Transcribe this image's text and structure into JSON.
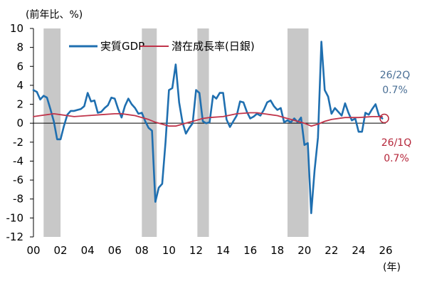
{
  "chart_data": {
    "type": "line",
    "ylabel": "(前年比、%)",
    "xunit": "(年)",
    "xlim": [
      2000.0,
      2026.0
    ],
    "ylim": [
      -12,
      10
    ],
    "yticks": [
      -12,
      -10,
      -8,
      -6,
      -4,
      -2,
      0,
      2,
      4,
      6,
      8,
      10
    ],
    "xticks": [
      2000,
      2002,
      2004,
      2006,
      2008,
      2010,
      2012,
      2014,
      2016,
      2018,
      2020,
      2022,
      2024,
      2026
    ],
    "xtick_labels": [
      "00",
      "02",
      "04",
      "06",
      "08",
      "10",
      "12",
      "14",
      "16",
      "18",
      "20",
      "22",
      "24",
      "26"
    ],
    "recessions": [
      [
        2000.75,
        2002.0
      ],
      [
        2008.0,
        2009.1
      ],
      [
        2012.1,
        2012.95
      ],
      [
        2018.75,
        2020.3
      ]
    ],
    "legend_position": "top-center",
    "series": [
      {
        "name": "実質GDP",
        "color": "#1f6fb0",
        "points": [
          [
            2000.0,
            3.5
          ],
          [
            2000.25,
            3.3
          ],
          [
            2000.5,
            2.5
          ],
          [
            2000.75,
            2.9
          ],
          [
            2001.0,
            2.7
          ],
          [
            2001.25,
            1.5
          ],
          [
            2001.5,
            0.2
          ],
          [
            2001.75,
            -1.7
          ],
          [
            2002.0,
            -1.7
          ],
          [
            2002.25,
            -0.3
          ],
          [
            2002.5,
            0.9
          ],
          [
            2002.75,
            1.3
          ],
          [
            2003.0,
            1.3
          ],
          [
            2003.25,
            1.4
          ],
          [
            2003.5,
            1.5
          ],
          [
            2003.75,
            1.8
          ],
          [
            2004.0,
            3.2
          ],
          [
            2004.25,
            2.3
          ],
          [
            2004.5,
            2.4
          ],
          [
            2004.75,
            1.1
          ],
          [
            2005.0,
            1.2
          ],
          [
            2005.25,
            1.6
          ],
          [
            2005.5,
            1.9
          ],
          [
            2005.75,
            2.7
          ],
          [
            2006.0,
            2.6
          ],
          [
            2006.25,
            1.5
          ],
          [
            2006.5,
            0.6
          ],
          [
            2006.75,
            1.8
          ],
          [
            2007.0,
            2.6
          ],
          [
            2007.25,
            2.0
          ],
          [
            2007.5,
            1.6
          ],
          [
            2007.75,
            1.0
          ],
          [
            2008.0,
            1.1
          ],
          [
            2008.25,
            0.2
          ],
          [
            2008.5,
            -0.5
          ],
          [
            2008.75,
            -0.8
          ],
          [
            2009.0,
            -8.3
          ],
          [
            2009.25,
            -6.8
          ],
          [
            2009.5,
            -6.4
          ],
          [
            2009.75,
            -2.0
          ],
          [
            2010.0,
            3.5
          ],
          [
            2010.25,
            3.7
          ],
          [
            2010.5,
            6.2
          ],
          [
            2010.75,
            2.2
          ],
          [
            2011.0,
            0.1
          ],
          [
            2011.25,
            -1.1
          ],
          [
            2011.5,
            -0.5
          ],
          [
            2011.75,
            0.0
          ],
          [
            2012.0,
            3.5
          ],
          [
            2012.25,
            3.2
          ],
          [
            2012.5,
            0.2
          ],
          [
            2012.75,
            0.0
          ],
          [
            2013.0,
            0.1
          ],
          [
            2013.25,
            2.9
          ],
          [
            2013.5,
            2.6
          ],
          [
            2013.75,
            3.2
          ],
          [
            2014.0,
            3.2
          ],
          [
            2014.25,
            0.4
          ],
          [
            2014.5,
            -0.4
          ],
          [
            2014.75,
            0.2
          ],
          [
            2015.0,
            0.8
          ],
          [
            2015.25,
            2.3
          ],
          [
            2015.5,
            2.2
          ],
          [
            2015.75,
            1.2
          ],
          [
            2016.0,
            0.5
          ],
          [
            2016.25,
            0.7
          ],
          [
            2016.5,
            1.0
          ],
          [
            2016.75,
            0.8
          ],
          [
            2017.0,
            1.4
          ],
          [
            2017.25,
            2.2
          ],
          [
            2017.5,
            2.4
          ],
          [
            2017.75,
            1.8
          ],
          [
            2018.0,
            1.4
          ],
          [
            2018.25,
            1.6
          ],
          [
            2018.5,
            0.1
          ],
          [
            2018.75,
            0.3
          ],
          [
            2019.0,
            0.1
          ],
          [
            2019.25,
            0.5
          ],
          [
            2019.5,
            0.1
          ],
          [
            2019.75,
            0.6
          ],
          [
            2020.0,
            -2.3
          ],
          [
            2020.25,
            -2.1
          ],
          [
            2020.5,
            -9.5
          ],
          [
            2020.75,
            -5.0
          ],
          [
            2021.0,
            -1.5
          ],
          [
            2021.25,
            8.6
          ],
          [
            2021.5,
            3.5
          ],
          [
            2021.75,
            2.8
          ],
          [
            2022.0,
            1.0
          ],
          [
            2022.25,
            1.6
          ],
          [
            2022.5,
            1.2
          ],
          [
            2022.75,
            0.8
          ],
          [
            2023.0,
            2.1
          ],
          [
            2023.25,
            1.1
          ],
          [
            2023.5,
            0.3
          ],
          [
            2023.75,
            0.5
          ],
          [
            2024.0,
            -0.9
          ],
          [
            2024.25,
            -0.9
          ],
          [
            2024.5,
            1.1
          ],
          [
            2024.75,
            0.9
          ],
          [
            2025.0,
            1.5
          ],
          [
            2025.25,
            2.0
          ],
          [
            2025.5,
            0.8
          ],
          [
            2025.75,
            0.5
          ]
        ]
      },
      {
        "name": "潜在成長率(日銀)",
        "color": "#c0344a",
        "points": [
          [
            2000.0,
            0.7
          ],
          [
            2000.5,
            0.8
          ],
          [
            2001.0,
            0.9
          ],
          [
            2001.5,
            1.0
          ],
          [
            2002.0,
            0.9
          ],
          [
            2002.5,
            0.8
          ],
          [
            2003.0,
            0.7
          ],
          [
            2004.0,
            0.8
          ],
          [
            2005.0,
            0.9
          ],
          [
            2006.0,
            1.0
          ],
          [
            2006.5,
            1.0
          ],
          [
            2007.0,
            0.9
          ],
          [
            2007.5,
            0.8
          ],
          [
            2008.0,
            0.6
          ],
          [
            2008.5,
            0.4
          ],
          [
            2009.0,
            0.1
          ],
          [
            2009.5,
            -0.1
          ],
          [
            2010.0,
            -0.3
          ],
          [
            2010.5,
            -0.3
          ],
          [
            2011.0,
            -0.1
          ],
          [
            2011.5,
            0.1
          ],
          [
            2012.0,
            0.3
          ],
          [
            2012.5,
            0.5
          ],
          [
            2013.0,
            0.6
          ],
          [
            2014.0,
            0.7
          ],
          [
            2015.0,
            1.0
          ],
          [
            2016.0,
            1.1
          ],
          [
            2016.5,
            1.1
          ],
          [
            2017.0,
            1.0
          ],
          [
            2018.0,
            0.8
          ],
          [
            2018.5,
            0.6
          ],
          [
            2019.0,
            0.4
          ],
          [
            2019.5,
            0.2
          ],
          [
            2020.0,
            0.0
          ],
          [
            2020.5,
            -0.3
          ],
          [
            2021.0,
            -0.1
          ],
          [
            2021.5,
            0.2
          ],
          [
            2022.0,
            0.4
          ],
          [
            2023.0,
            0.6
          ],
          [
            2024.0,
            0.6
          ],
          [
            2025.0,
            0.7
          ],
          [
            2025.75,
            0.7
          ]
        ]
      }
    ],
    "annotations": [
      {
        "name": "annotation-26-2q",
        "label": "26/2Q",
        "value": "0.7%",
        "color": "#4a6f95"
      },
      {
        "name": "annotation-26-1q",
        "label": "26/1Q",
        "value": "0.7%",
        "color": "#b5263a"
      }
    ],
    "marker": {
      "x": 2026.0,
      "y": 0.5
    }
  }
}
